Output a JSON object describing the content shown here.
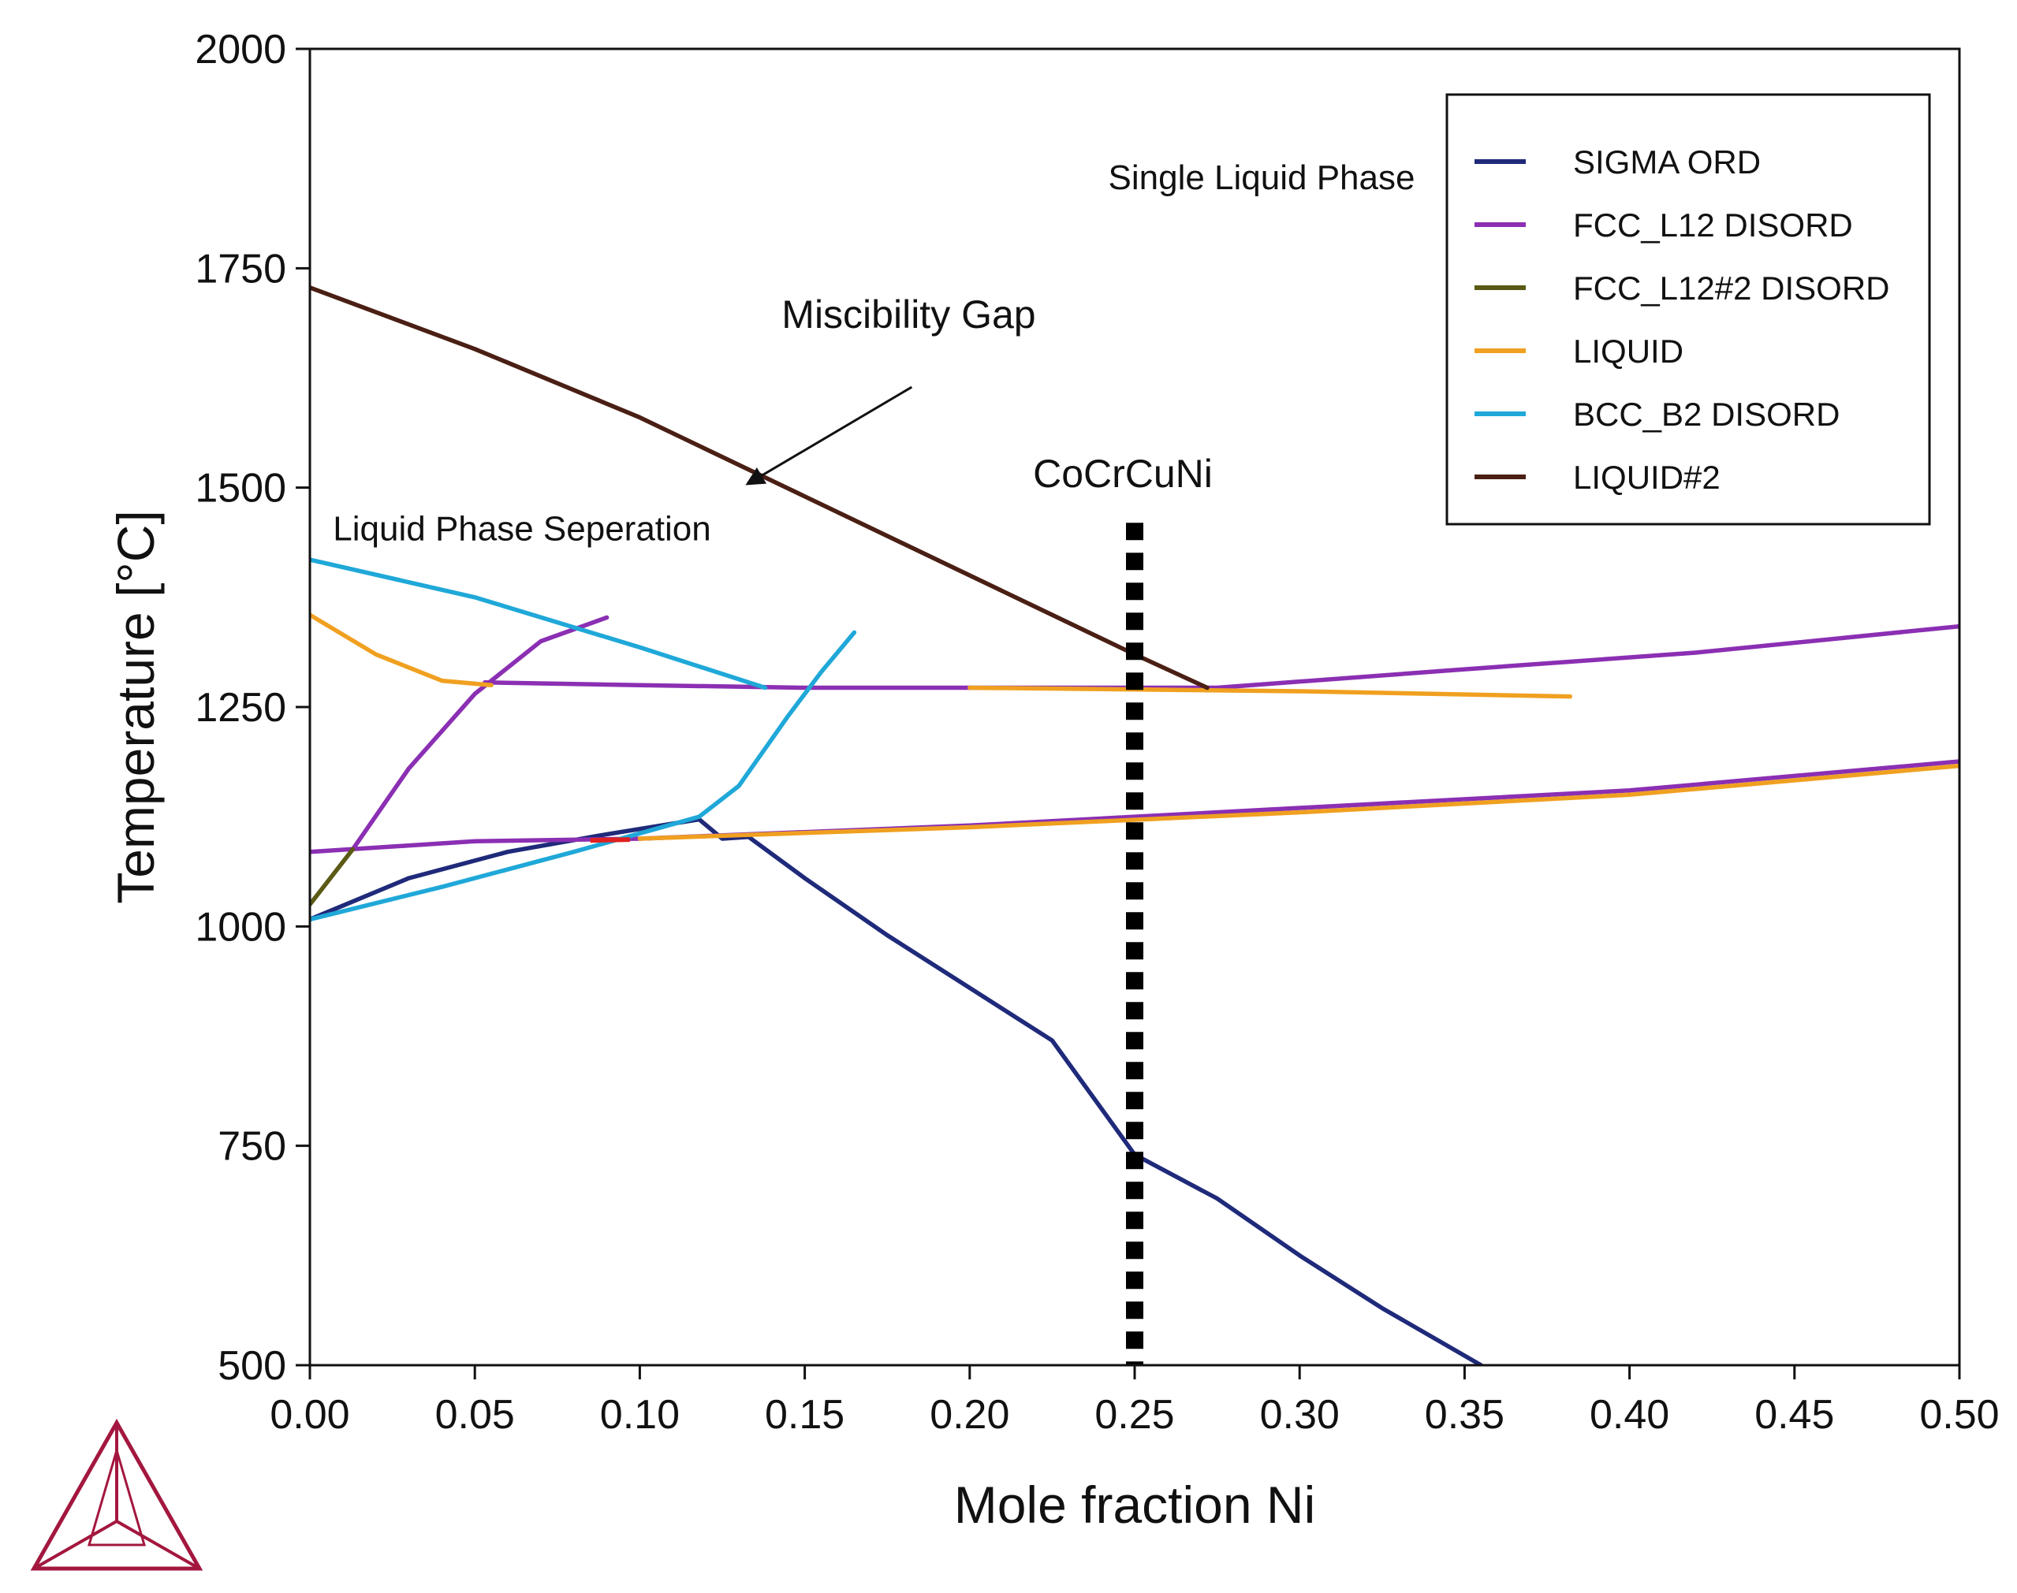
{
  "chart_data": {
    "type": "line",
    "title": "",
    "xlabel": "Mole fraction Ni",
    "ylabel": "Temperature [°C]",
    "xlim": [
      0.0,
      0.5
    ],
    "ylim": [
      500,
      2000
    ],
    "xticks": [
      "0.00",
      "0.05",
      "0.10",
      "0.15",
      "0.20",
      "0.25",
      "0.30",
      "0.35",
      "0.40",
      "0.45",
      "0.50"
    ],
    "yticks": [
      "500",
      "750",
      "1000",
      "1250",
      "1500",
      "1750",
      "2000"
    ],
    "legend_position": "top-right",
    "series": [
      {
        "name": "SIGMA ORD",
        "color": "#1f2a7a",
        "segments": [
          [
            [
              0.0,
              1008
            ],
            [
              0.03,
              1055
            ],
            [
              0.06,
              1085
            ],
            [
              0.09,
              1105
            ],
            [
              0.118,
              1122
            ]
          ],
          [
            [
              0.118,
              1122
            ],
            [
              0.125,
              1100
            ],
            [
              0.133,
              1102
            ]
          ],
          [
            [
              0.133,
              1102
            ],
            [
              0.15,
              1055
            ],
            [
              0.175,
              990
            ],
            [
              0.2,
              930
            ],
            [
              0.225,
              870
            ],
            [
              0.25,
              740
            ],
            [
              0.275,
              690
            ],
            [
              0.3,
              625
            ],
            [
              0.325,
              565
            ],
            [
              0.355,
              500
            ]
          ]
        ]
      },
      {
        "name": "FCC_L12 DISORD",
        "color": "#8b2fb3",
        "segments": [
          [
            [
              0.0,
              1085
            ],
            [
              0.05,
              1097
            ],
            [
              0.1,
              1100
            ],
            [
              0.2,
              1115
            ],
            [
              0.3,
              1135
            ],
            [
              0.4,
              1155
            ],
            [
              0.5,
              1188
            ]
          ],
          [
            [
              0.013,
              1088
            ],
            [
              0.03,
              1180
            ],
            [
              0.05,
              1265
            ],
            [
              0.07,
              1325
            ],
            [
              0.09,
              1352
            ]
          ],
          [
            [
              0.053,
              1278
            ],
            [
              0.1,
              1275
            ],
            [
              0.15,
              1272
            ],
            [
              0.2,
              1272
            ],
            [
              0.25,
              1272
            ],
            [
              0.275,
              1272
            ]
          ],
          [
            [
              0.275,
              1272
            ],
            [
              0.35,
              1293
            ],
            [
              0.42,
              1312
            ],
            [
              0.5,
              1342
            ]
          ]
        ]
      },
      {
        "name": "FCC_L12#2 DISORD",
        "color": "#5a5a14",
        "segments": [
          [
            [
              0.0,
              1025
            ],
            [
              0.013,
              1088
            ]
          ]
        ]
      },
      {
        "name": "LIQUID",
        "color": "#f0a020",
        "segments": [
          [
            [
              0.0,
              1355
            ],
            [
              0.02,
              1310
            ],
            [
              0.04,
              1280
            ],
            [
              0.055,
              1275
            ]
          ],
          [
            [
              0.2,
              1272
            ],
            [
              0.3,
              1268
            ],
            [
              0.382,
              1262
            ]
          ],
          [
            [
              0.1,
              1100
            ],
            [
              0.2,
              1113
            ],
            [
              0.3,
              1130
            ],
            [
              0.4,
              1150
            ],
            [
              0.5,
              1183
            ]
          ]
        ]
      },
      {
        "name": "BCC_B2 DISORD",
        "color": "#1fa8d8",
        "segments": [
          [
            [
              0.0,
              1418
            ],
            [
              0.05,
              1375
            ],
            [
              0.1,
              1318
            ],
            [
              0.138,
              1272
            ]
          ],
          [
            [
              0.0,
              1008
            ],
            [
              0.04,
              1045
            ],
            [
              0.08,
              1085
            ],
            [
              0.118,
              1125
            ]
          ],
          [
            [
              0.118,
              1125
            ],
            [
              0.13,
              1160
            ],
            [
              0.145,
              1240
            ],
            [
              0.155,
              1290
            ],
            [
              0.165,
              1335
            ]
          ]
        ]
      },
      {
        "name": "LIQUID#2",
        "color": "#4a1f14",
        "segments": [
          [
            [
              0.0,
              1728
            ],
            [
              0.05,
              1658
            ],
            [
              0.1,
              1580
            ],
            [
              0.15,
              1490
            ],
            [
              0.2,
              1400
            ],
            [
              0.25,
              1310
            ],
            [
              0.272,
              1272
            ]
          ]
        ]
      }
    ],
    "red_segment": {
      "color": "#e02020",
      "points": [
        [
          0.085,
          1098
        ],
        [
          0.097,
          1099
        ]
      ]
    },
    "vertical_marker": {
      "label": "CoCrCuNi",
      "x": 0.25,
      "y_range": [
        500,
        1460
      ]
    },
    "annotations": [
      {
        "text": "Single Liquid Phase",
        "x": 0.242,
        "y": 1840
      },
      {
        "text": "Miscibility Gap",
        "x": 0.143,
        "y": 1682,
        "arrow_to": [
          0.133,
          1505
        ]
      },
      {
        "text": "Liquid Phase Seperation",
        "x": 0.007,
        "y": 1440
      }
    ]
  }
}
